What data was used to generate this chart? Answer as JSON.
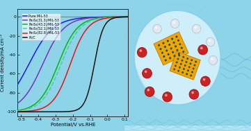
{
  "xlabel": "Potential/V vs.RHE",
  "ylabel": "Current density/mA cm⁻²",
  "xlim": [
    -0.52,
    0.12
  ],
  "ylim": [
    -105,
    8
  ],
  "yticks": [
    0,
    -20,
    -40,
    -60,
    -80,
    -100
  ],
  "xticks": [
    -0.5,
    -0.4,
    -0.3,
    -0.2,
    -0.1,
    0.0,
    0.1
  ],
  "legend_entries": [
    "Pure MIL-53",
    "Fe₃S₄(31.3)/MIL-53",
    "Fe₃S₄(43.2)/MIL-53",
    "Fe₃S₄(52.1)/MIL-53",
    "Fe₃S₄(82.8)/MIL-53",
    "Pt/C"
  ],
  "line_colors": [
    "#1a1aee",
    "#7B2FBE",
    "#00bb00",
    "#44ccaa",
    "#ee1111",
    "#111111"
  ],
  "line_styles": [
    "-",
    "-",
    "-",
    "--",
    "-",
    "-"
  ],
  "onset_potentials": [
    -0.455,
    -0.375,
    -0.285,
    -0.268,
    -0.215,
    -0.075
  ],
  "steepness": [
    14,
    16,
    18,
    18,
    20,
    38
  ],
  "bg_color": "#8dd4e8",
  "plot_bg_color": "#c8e8f4",
  "bubble_color": "#ddf4ff",
  "bubble_edge_color": "#88ccee",
  "water_line_color": "#66bbdd",
  "catalyst_color": "#f0a500",
  "catalyst_dot_color": "#1a5050",
  "red_sphere_color": "#cc2222",
  "white_sphere_color": "#e0e8f0",
  "fig_width": 3.61,
  "fig_height": 1.89,
  "dpi": 100
}
